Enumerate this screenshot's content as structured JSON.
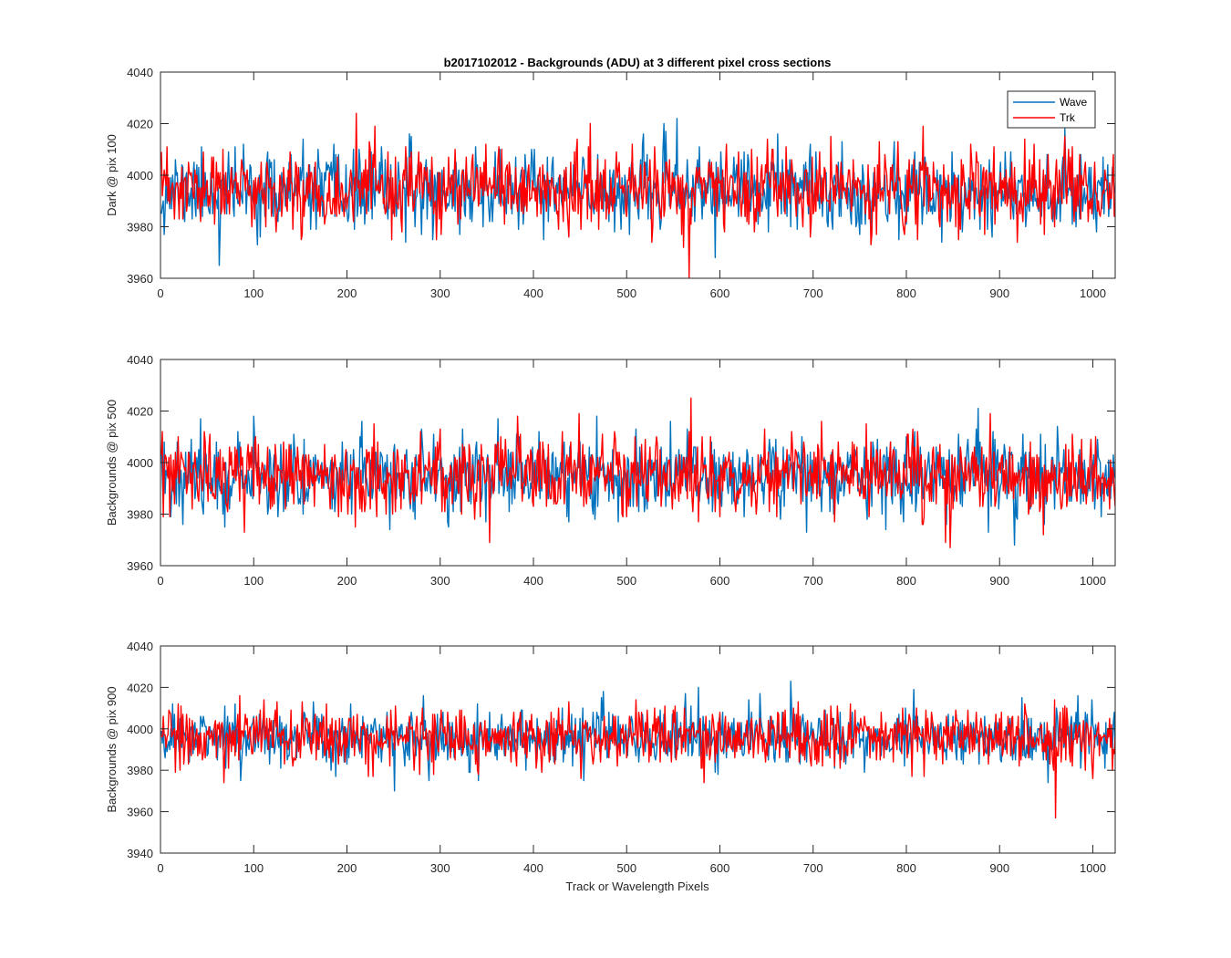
{
  "figure": {
    "title": "b2017102012 - Backgrounds (ADU) at 3 different pixel cross sections",
    "xlabel": "Track or Wavelength Pixels"
  },
  "legend": {
    "entries": [
      {
        "name": "Wave",
        "color": "#0072BD"
      },
      {
        "name": "Trk",
        "color": "#FF0000"
      }
    ],
    "placement": "top-right of first panel"
  },
  "chart_data": [
    {
      "type": "line",
      "title": "b2017102012 - Backgrounds (ADU) at 3 different pixel cross sections",
      "xlabel": "",
      "ylabel": "Dark @ pix 100",
      "xlim": [
        0,
        1024
      ],
      "ylim": [
        3960,
        4040
      ],
      "xticks": [
        0,
        100,
        200,
        300,
        400,
        500,
        600,
        700,
        800,
        900,
        1000
      ],
      "yticks": [
        3960,
        3980,
        4000,
        4020,
        4040
      ],
      "grid": false,
      "legend": "top-right",
      "n_points": 1024,
      "series": [
        {
          "name": "Wave",
          "color": "#0072BD",
          "mean": 3994,
          "std": 7.5,
          "min": 3965,
          "max": 4022,
          "seed": 11
        },
        {
          "name": "Trk",
          "color": "#FF0000",
          "mean": 3994,
          "std": 7.5,
          "min": 3960,
          "max": 4024,
          "seed": 23
        }
      ]
    },
    {
      "type": "line",
      "title": "",
      "xlabel": "",
      "ylabel": "Backgrounds @ pix 500",
      "xlim": [
        0,
        1024
      ],
      "ylim": [
        3960,
        4040
      ],
      "xticks": [
        0,
        100,
        200,
        300,
        400,
        500,
        600,
        700,
        800,
        900,
        1000
      ],
      "yticks": [
        3960,
        3980,
        4000,
        4020,
        4040
      ],
      "grid": false,
      "n_points": 1024,
      "series": [
        {
          "name": "Wave",
          "color": "#0072BD",
          "mean": 3995,
          "std": 7.5,
          "min": 3968,
          "max": 4021,
          "seed": 37
        },
        {
          "name": "Trk",
          "color": "#FF0000",
          "mean": 3995,
          "std": 7.5,
          "min": 3967,
          "max": 4025,
          "seed": 53
        }
      ]
    },
    {
      "type": "line",
      "title": "",
      "xlabel": "Track or Wavelength Pixels",
      "ylabel": "Backgrounds @ pix 900",
      "xlim": [
        0,
        1024
      ],
      "ylim": [
        3940,
        4040
      ],
      "xticks": [
        0,
        100,
        200,
        300,
        400,
        500,
        600,
        700,
        800,
        900,
        1000
      ],
      "yticks": [
        3940,
        3960,
        3980,
        4000,
        4020,
        4040
      ],
      "grid": false,
      "n_points": 1024,
      "series": [
        {
          "name": "Wave",
          "color": "#0072BD",
          "mean": 3996,
          "std": 7,
          "min": 3970,
          "max": 4023,
          "seed": 71
        },
        {
          "name": "Trk",
          "color": "#FF0000",
          "mean": 3996,
          "std": 7,
          "min": 3957,
          "max": 4016,
          "seed": 89
        }
      ]
    }
  ]
}
